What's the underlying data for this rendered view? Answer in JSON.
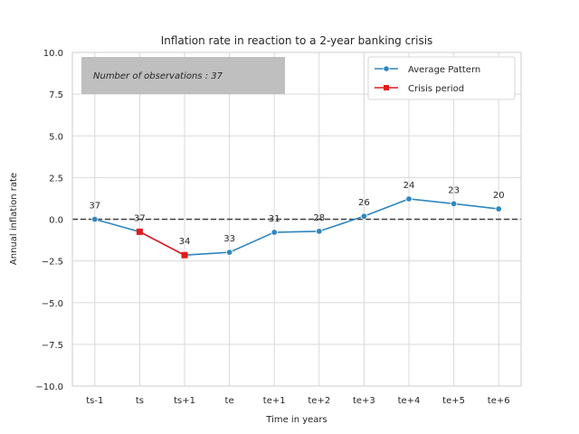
{
  "chart_data": {
    "type": "line",
    "title": "Inflation rate in reaction to a 2-year banking crisis",
    "xlabel": "Time in years",
    "ylabel": "Annual inflation rate",
    "categories": [
      "ts-1",
      "ts",
      "ts+1",
      "te",
      "te+1",
      "te+2",
      "te+3",
      "te+4",
      "te+5",
      "te+6"
    ],
    "ylim": [
      -10,
      10
    ],
    "yticks": [
      -10,
      -7.5,
      -5,
      -2.5,
      0,
      2.5,
      5,
      7.5,
      10
    ],
    "ytick_labels": [
      "−10.0",
      "−7.5",
      "−5.0",
      "−2.5",
      "0.0",
      "2.5",
      "5.0",
      "7.5",
      "10.0"
    ],
    "grid": true,
    "reference_line": {
      "y": 0,
      "style": "dashed",
      "color": "#404040"
    },
    "series": [
      {
        "name": "Average Pattern",
        "color": "#2e86c1",
        "marker": "circle",
        "values": [
          0.0,
          -0.75,
          -2.15,
          -1.98,
          -0.78,
          -0.72,
          0.18,
          1.22,
          0.93,
          0.62
        ]
      },
      {
        "name": "Crisis period",
        "color": "#e31a1c",
        "marker": "square",
        "indices": [
          1,
          2
        ]
      }
    ],
    "observation_counts": [
      "37",
      "37",
      "34",
      "33",
      "31",
      "28",
      "26",
      "24",
      "23",
      "20"
    ],
    "note": "Number of observations : 37",
    "legend_position": "top-right"
  }
}
